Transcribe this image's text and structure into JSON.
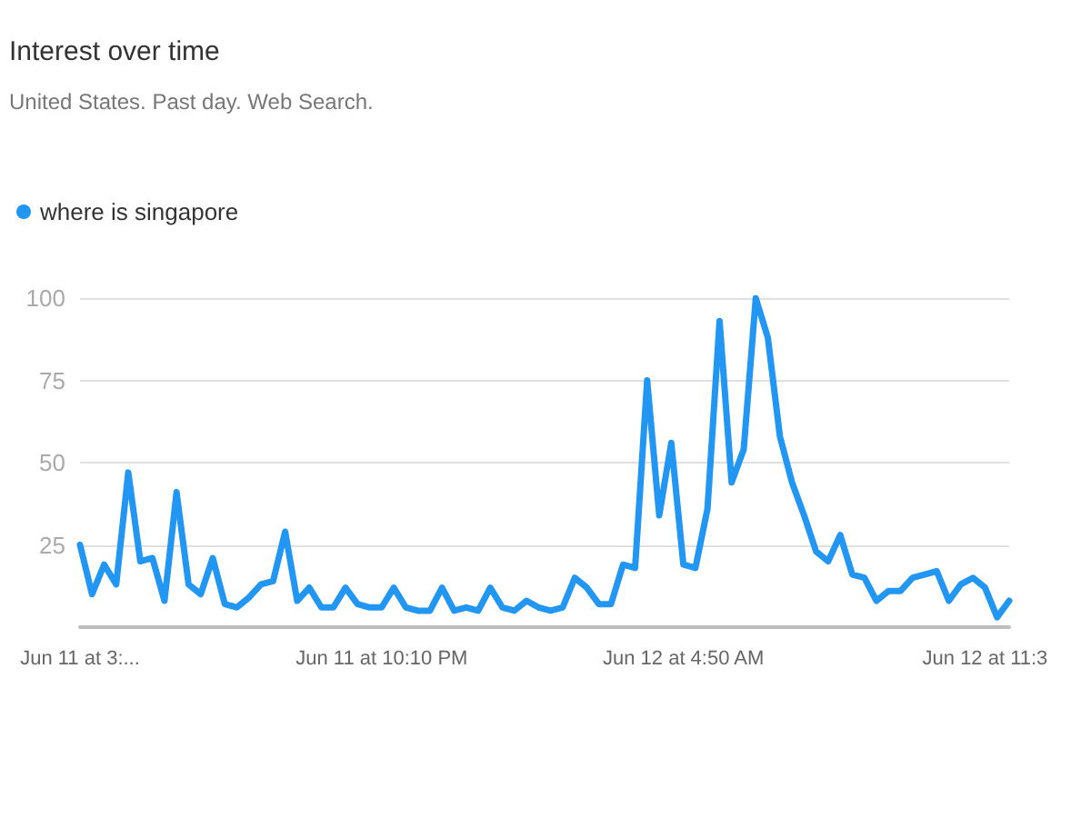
{
  "chart_data": {
    "type": "line",
    "title": "Interest over time",
    "subtitle": "United States. Past day. Web Search.",
    "legend": "top left",
    "grid": "y",
    "marker": "none",
    "line_style": "solid",
    "categories": [
      "Jun 11 at 3:...",
      null,
      null,
      null,
      null,
      null,
      null,
      null,
      null,
      null,
      null,
      null,
      null,
      null,
      null,
      null,
      null,
      null,
      null,
      null,
      null,
      null,
      null,
      null,
      null,
      "Jun 11 at 10:10 PM",
      null,
      null,
      null,
      null,
      null,
      null,
      null,
      null,
      null,
      null,
      null,
      null,
      null,
      null,
      null,
      null,
      null,
      null,
      null,
      null,
      null,
      null,
      null,
      null,
      "Jun 12 at 4:50 AM",
      null,
      null,
      null,
      null,
      null,
      null,
      null,
      null,
      null,
      null,
      null,
      null,
      null,
      null,
      null,
      null,
      null,
      null,
      null,
      null,
      null,
      null,
      null,
      null,
      "Jun 12 at 11:3",
      null,
      null
    ],
    "ylim": [
      0,
      100
    ],
    "yticks": [
      25,
      50,
      75,
      100
    ],
    "series": [
      {
        "name": "where is singapore",
        "color": "#2196f3",
        "values": [
          25,
          10,
          19,
          13,
          47,
          20,
          21,
          8,
          41,
          13,
          10,
          21,
          7,
          6,
          9,
          13,
          14,
          29,
          8,
          12,
          6,
          6,
          12,
          7,
          6,
          6,
          12,
          6,
          5,
          5,
          12,
          5,
          6,
          5,
          12,
          6,
          5,
          8,
          6,
          5,
          6,
          15,
          12,
          7,
          7,
          19,
          18,
          75,
          34,
          56,
          19,
          18,
          36,
          93,
          44,
          54,
          100,
          88,
          58,
          44,
          34,
          23,
          20,
          28,
          16,
          15,
          8,
          11,
          11,
          15,
          16,
          17,
          8,
          13,
          15,
          12,
          3,
          8
        ]
      }
    ]
  }
}
